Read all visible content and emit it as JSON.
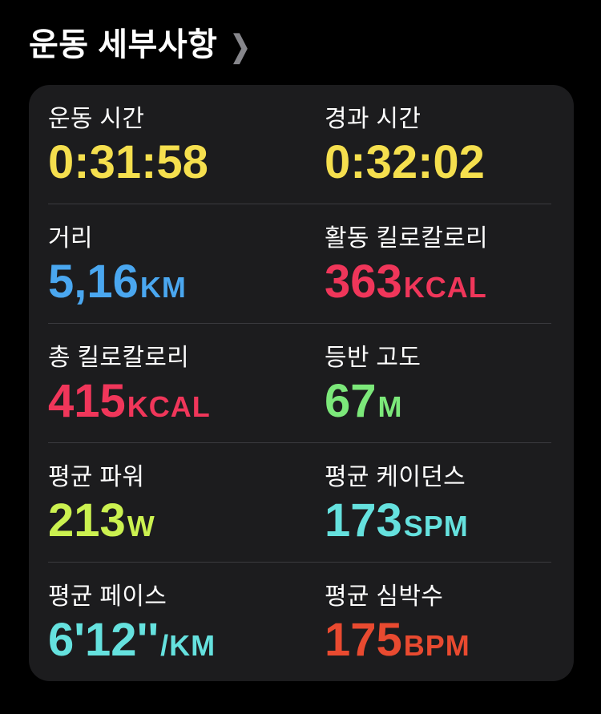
{
  "header": {
    "title": "운동 세부사항",
    "chevron": "❯"
  },
  "colors": {
    "page_background": "#000000",
    "card_background": "#1c1c1e",
    "divider": "#3b3b3f",
    "label_text": "#ffffff",
    "chevron": "#86868b",
    "yellow_time": "#f5df4e",
    "blue_distance": "#4aa7f0",
    "pink_kcal": "#f0365a",
    "green_elevation": "#7ce87a",
    "lime_power": "#cbf150",
    "cyan_cadence_pace": "#65e1de",
    "red_heart_rate": "#e94a30"
  },
  "metrics": [
    {
      "label": "운동 시간",
      "value": "0:31:58",
      "unit": "",
      "color": "#f5df4e"
    },
    {
      "label": "경과 시간",
      "value": "0:32:02",
      "unit": "",
      "color": "#f5df4e"
    },
    {
      "label": "거리",
      "value": "5,16",
      "unit": "KM",
      "color": "#4aa7f0"
    },
    {
      "label": "활동 킬로칼로리",
      "value": "363",
      "unit": "KCAL",
      "color": "#f0365a"
    },
    {
      "label": "총 킬로칼로리",
      "value": "415",
      "unit": "KCAL",
      "color": "#f0365a"
    },
    {
      "label": "등반 고도",
      "value": "67",
      "unit": "M",
      "color": "#7ce87a"
    },
    {
      "label": "평균 파워",
      "value": "213",
      "unit": "W",
      "color": "#cbf150"
    },
    {
      "label": "평균 케이던스",
      "value": "173",
      "unit": "SPM",
      "color": "#65e1de"
    },
    {
      "label": "평균 페이스",
      "value": "6'12''",
      "unit": "/KM",
      "color": "#65e1de"
    },
    {
      "label": "평균 심박수",
      "value": "175",
      "unit": "BPM",
      "color": "#e94a30"
    }
  ]
}
